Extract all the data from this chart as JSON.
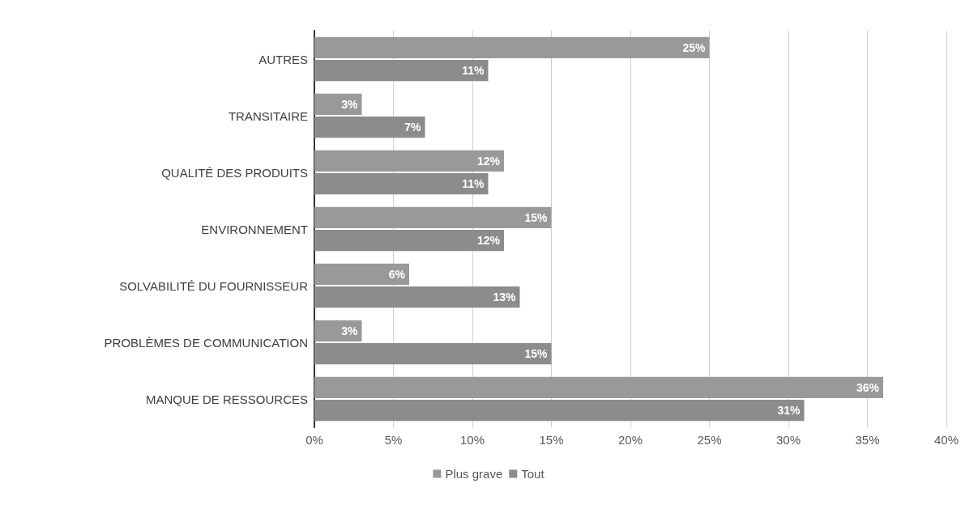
{
  "chart_data": {
    "type": "bar",
    "orientation": "horizontal",
    "categories": [
      "AUTRES",
      "TRANSITAIRE",
      "QUALITÉ DES PRODUITS",
      "ENVIRONNEMENT",
      "SOLVABILITÉ DU FOURNISSEUR",
      "PROBLÈMES DE COMMUNICATION",
      "MANQUE DE RESSOURCES"
    ],
    "series": [
      {
        "name": "Plus grave",
        "color": "#999999",
        "values": [
          25,
          3,
          12,
          15,
          6,
          3,
          36
        ],
        "value_labels": [
          "25%",
          "3%",
          "12%",
          "15%",
          "6%",
          "3%",
          "36%"
        ]
      },
      {
        "name": "Tout",
        "color": "#8c8c8c",
        "values": [
          11,
          7,
          11,
          12,
          13,
          15,
          31
        ],
        "value_labels": [
          "11%",
          "7%",
          "11%",
          "12%",
          "13%",
          "15%",
          "31%"
        ]
      }
    ],
    "xlim": [
      0,
      40
    ],
    "xticks": [
      {
        "value": 0,
        "label": "0%"
      },
      {
        "value": 5,
        "label": "5%"
      },
      {
        "value": 10,
        "label": "10%"
      },
      {
        "value": 15,
        "label": "15%"
      },
      {
        "value": 20,
        "label": "20%"
      },
      {
        "value": 25,
        "label": "25%"
      },
      {
        "value": 30,
        "label": "30%"
      },
      {
        "value": 35,
        "label": "35%"
      },
      {
        "value": 40,
        "label": "40%"
      }
    ],
    "grid": "x",
    "legend": "bottom"
  }
}
